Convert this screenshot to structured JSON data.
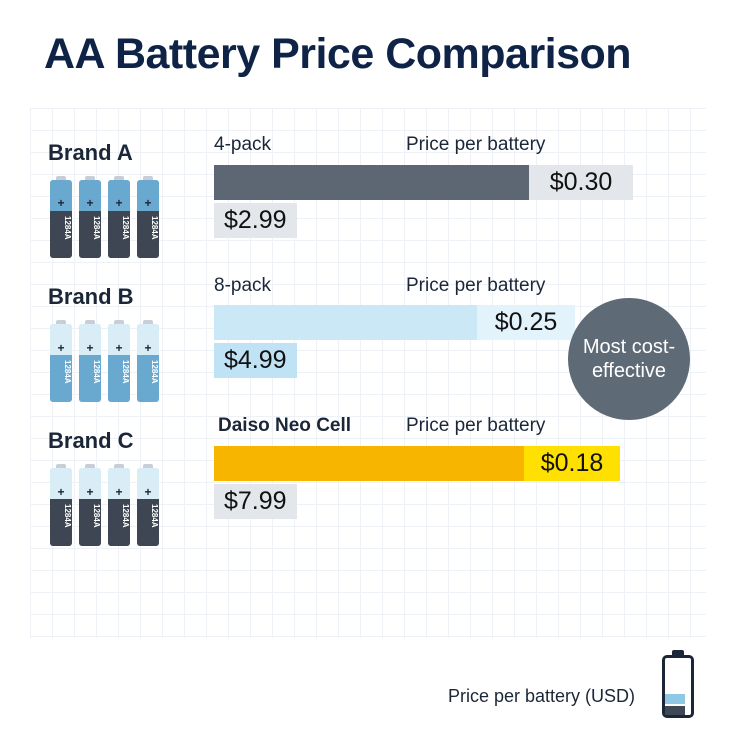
{
  "title": "AA Battery Price Comparison",
  "brands": [
    {
      "name": "Brand A",
      "pack_label": "4-pack",
      "price_per_battery_label": "Price per battery",
      "price_per_battery": "$0.30",
      "pack_price": "$2.99",
      "battery_text": "1284A",
      "battery_count": 4,
      "colors": {
        "bar": "#5d6673",
        "pp_box": "#e3e6ea",
        "price_box": "#e3e6ea",
        "battery_top": "#6aa9cf",
        "battery_bottom": "#3d4652"
      }
    },
    {
      "name": "Brand B",
      "pack_label": "8-pack",
      "price_per_battery_label": "Price per battery",
      "price_per_battery": "$0.25",
      "pack_price": "$4.99",
      "battery_text": "1284A",
      "battery_count": 4,
      "colors": {
        "bar": "#cbe8f7",
        "pp_box": "#e3f3fb",
        "price_box": "#bfe3f4",
        "battery_top": "#d9edf7",
        "battery_bottom": "#6aa9cf"
      }
    },
    {
      "name": "Brand C",
      "pack_label": "Daiso Neo Cell",
      "price_per_battery_label": "Price per battery",
      "price_per_battery": "$0.18",
      "pack_price": "$7.99",
      "battery_text": "1284A",
      "battery_count": 4,
      "colors": {
        "bar": "#f7b500",
        "pp_box": "#ffe000",
        "price_box": "#e3e6ea",
        "battery_top": "#d9edf7",
        "battery_bottom": "#3d4652"
      }
    }
  ],
  "badge_text": "Most cost-effective",
  "footer": "Price per battery (USD)",
  "chart_data": {
    "type": "bar",
    "orientation": "horizontal",
    "title": "AA Battery Price Comparison",
    "categories": [
      "Brand A",
      "Brand B",
      "Brand C"
    ],
    "series": [
      {
        "name": "Price per battery (USD)",
        "values": [
          0.3,
          0.25,
          0.18
        ]
      }
    ],
    "pack_sizes": [
      "4-pack",
      "8-pack",
      "Daiso Neo Cell"
    ],
    "pack_prices": [
      2.99,
      4.99,
      7.99
    ],
    "xlabel": "Price per battery (USD)",
    "xlim": [
      0,
      0.3
    ],
    "annotations": [
      "Most cost-effective"
    ]
  }
}
